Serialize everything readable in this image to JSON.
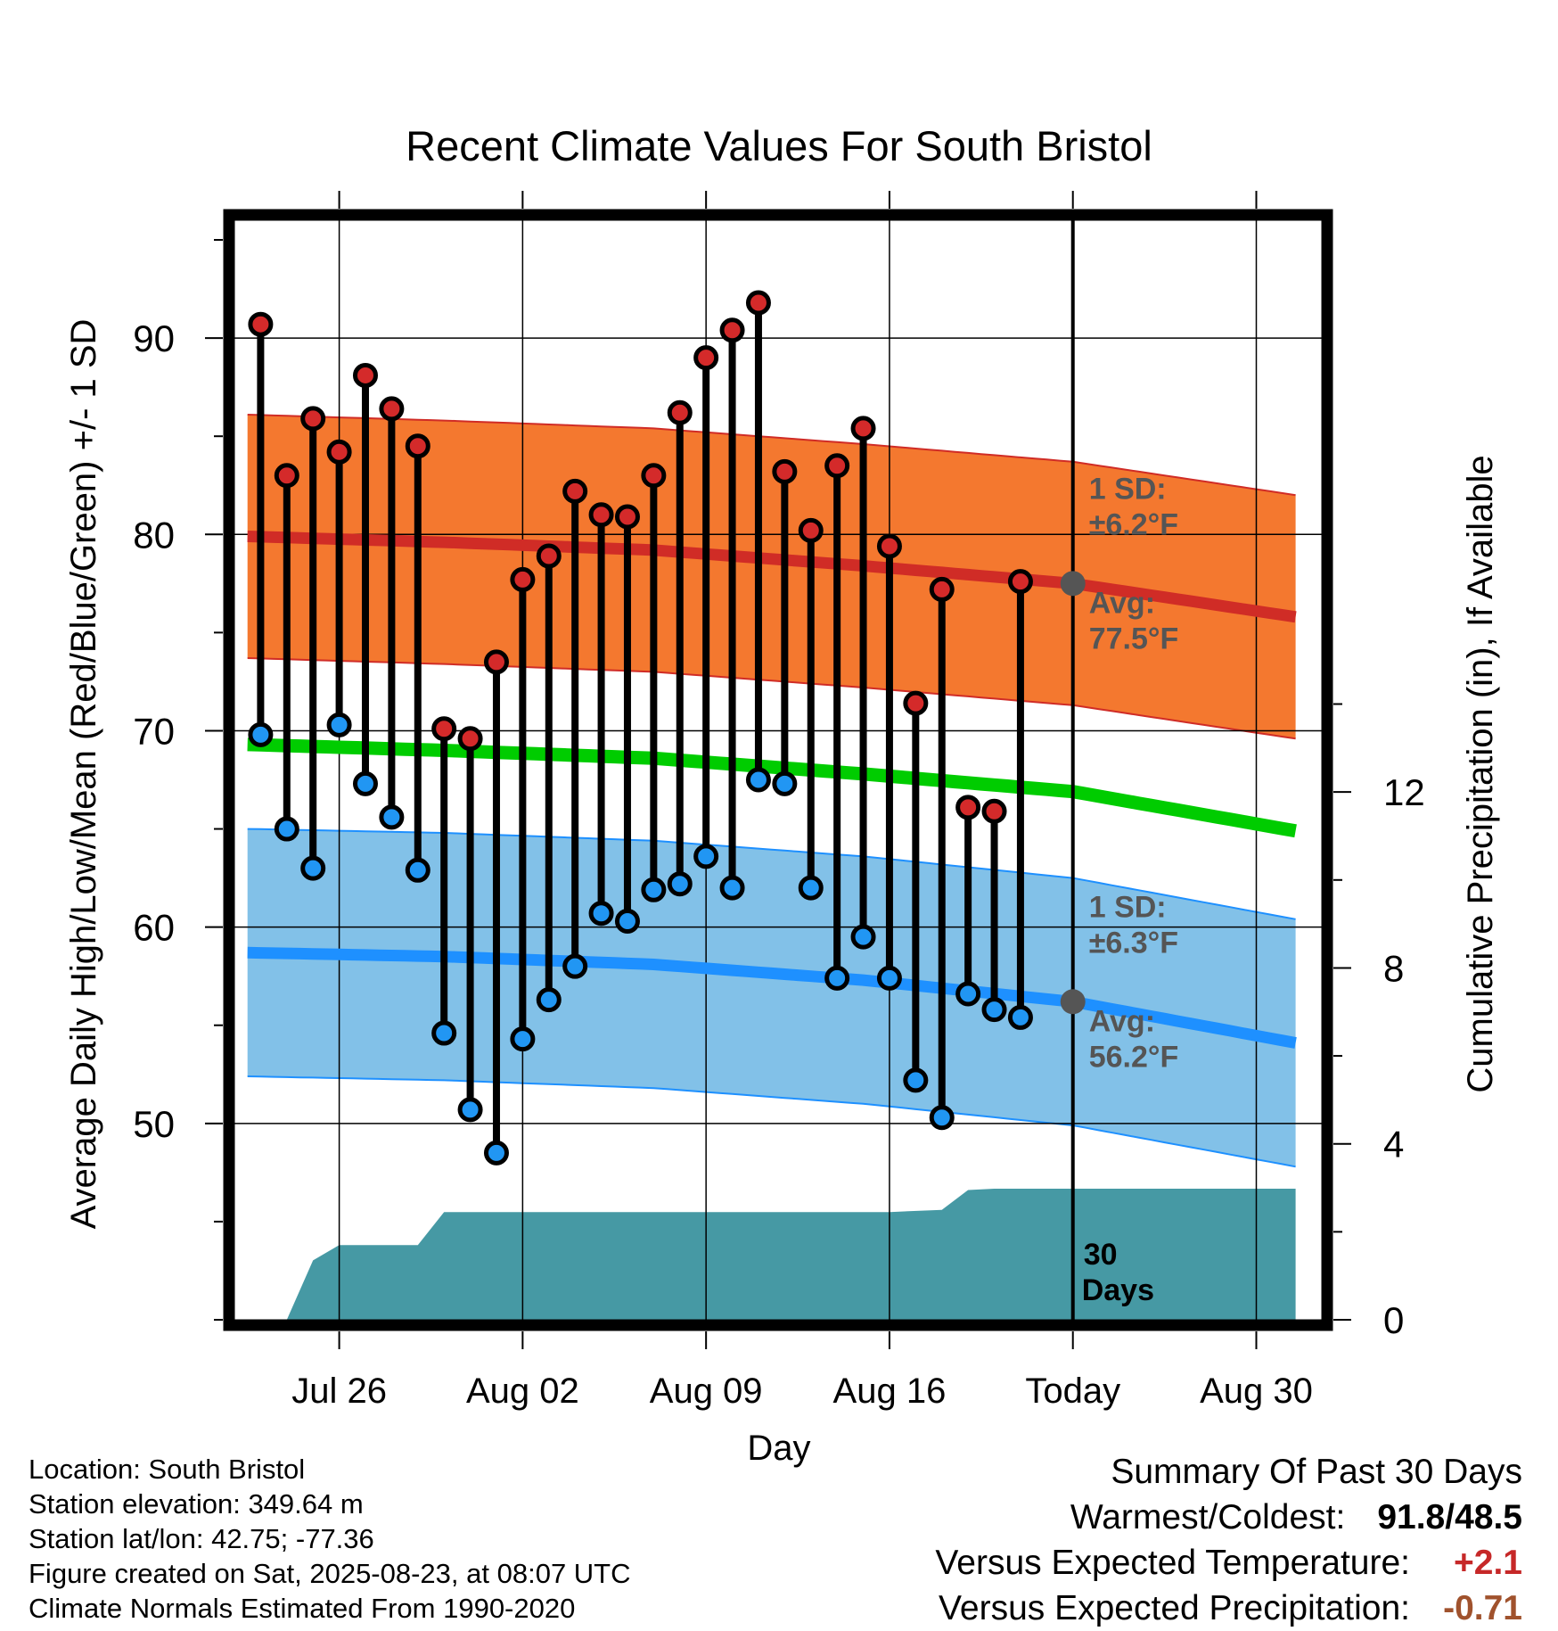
{
  "chart_data": {
    "type": "line",
    "title": "Recent Climate Values For South Bristol",
    "xlabel": "Day",
    "ylabel": "Average Daily High/Low/Mean (Red/Blue/Green) +/- 1 SD",
    "y2label": "Cumulative Precipitation (in), If Available",
    "ylim": [
      40,
      96
    ],
    "y2lim": [
      0,
      25
    ],
    "yticks": [
      50,
      60,
      70,
      80,
      90
    ],
    "y2ticks": [
      0,
      4,
      8,
      12
    ],
    "xlim": [
      "Jul 22",
      "Sep 02"
    ],
    "xticks": [
      {
        "label": "Jul 26",
        "day": 4
      },
      {
        "label": "Aug 02",
        "day": 11
      },
      {
        "label": "Aug 09",
        "day": 18
      },
      {
        "label": "Aug 16",
        "day": 25
      },
      {
        "label": "Today",
        "day": 32
      },
      {
        "label": "Aug 30",
        "day": 39
      }
    ],
    "today_day": 32,
    "grid": true,
    "obs_days": [
      1,
      2,
      3,
      4,
      5,
      6,
      7,
      8,
      9,
      10,
      11,
      12,
      13,
      14,
      15,
      16,
      17,
      18,
      19,
      20,
      21,
      22,
      23,
      24,
      25,
      26,
      27,
      28,
      29,
      30
    ],
    "obs_high": [
      90.7,
      83.0,
      85.9,
      84.2,
      88.1,
      86.4,
      84.5,
      70.1,
      69.6,
      73.5,
      77.7,
      78.9,
      82.2,
      81.0,
      80.9,
      83.0,
      86.2,
      89.0,
      90.4,
      91.8,
      83.2,
      80.2,
      83.5,
      85.4,
      79.4,
      71.4,
      77.2,
      66.1,
      65.9,
      77.6
    ],
    "obs_low": [
      69.8,
      65.0,
      63.0,
      70.3,
      67.3,
      65.6,
      62.9,
      54.6,
      50.7,
      48.5,
      54.3,
      56.3,
      58.0,
      60.7,
      60.3,
      61.9,
      62.2,
      63.6,
      62.0,
      67.5,
      67.3,
      62.0,
      57.4,
      59.5,
      57.4,
      52.2,
      50.3,
      56.6,
      55.8,
      55.4
    ],
    "normal_days": [
      0.5,
      8,
      16,
      24,
      32,
      40.5
    ],
    "normal_high": [
      79.9,
      79.6,
      79.2,
      78.4,
      77.5,
      75.8
    ],
    "normal_low": [
      58.7,
      58.5,
      58.1,
      57.3,
      56.2,
      54.1
    ],
    "normal_mean": [
      69.3,
      69.0,
      68.6,
      67.8,
      66.9,
      64.9
    ],
    "high_sd": 6.2,
    "low_sd": 6.3,
    "precip_days": [
      0.5,
      1.5,
      2.0,
      3.0,
      4.0,
      6.0,
      7.0,
      8.0,
      9.0,
      18.0,
      25.0,
      27.0,
      28.0,
      29.0,
      32.0,
      40.5
    ],
    "precip_cum": [
      0.0,
      0.0,
      0.0,
      1.35,
      1.7,
      1.7,
      1.7,
      2.45,
      2.45,
      2.45,
      2.45,
      2.5,
      2.95,
      2.98,
      2.98,
      2.98
    ],
    "annotations": {
      "high_sd_title": "1 SD:",
      "high_sd_value": "±6.2°F",
      "high_avg_title": "Avg:",
      "high_avg_value": "77.5°F",
      "low_sd_title": "1 SD:",
      "low_sd_value": "±6.3°F",
      "low_avg_title": "Avg:",
      "low_avg_value": "56.2°F",
      "window_label_1": "30",
      "window_label_2": "Days"
    },
    "colors": {
      "high_band": "#f4782f",
      "high_line": "#d02c26",
      "low_band": "#82c1e8",
      "low_line": "#1e90ff",
      "mean_line": "#00cc00",
      "precip": "#4699a4",
      "high_marker": "#d42a2a",
      "low_marker": "#2196f3",
      "annotation": "#555555"
    }
  },
  "footer": {
    "location": "Location: South Bristol",
    "elevation": "Station elevation: 349.64 m",
    "latlon": "Station lat/lon: 42.75; -77.36",
    "created": "Figure created on Sat, 2025-08-23, at 08:07 UTC",
    "normals": "Climate Normals Estimated From 1990-2020"
  },
  "summary": {
    "title": "Summary Of Past 30 Days",
    "warm_label": "Warmest/Coldest:",
    "warm_value": "91.8/48.5",
    "temp_label": "Versus Expected Temperature:",
    "temp_value": "+2.1",
    "precip_label": "Versus Expected Precipitation:",
    "precip_value": "-0.71"
  }
}
